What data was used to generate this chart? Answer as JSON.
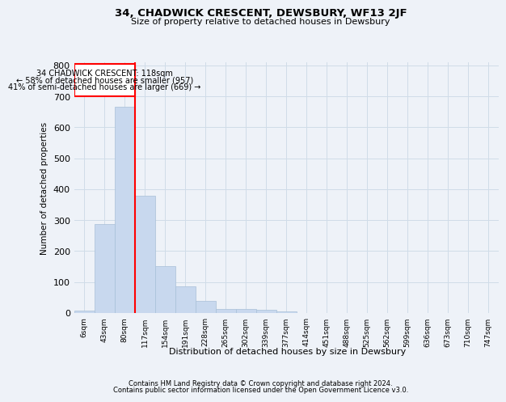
{
  "title1": "34, CHADWICK CRESCENT, DEWSBURY, WF13 2JF",
  "title2": "Size of property relative to detached houses in Dewsbury",
  "xlabel": "Distribution of detached houses by size in Dewsbury",
  "ylabel": "Number of detached properties",
  "bin_labels": [
    "6sqm",
    "43sqm",
    "80sqm",
    "117sqm",
    "154sqm",
    "191sqm",
    "228sqm",
    "265sqm",
    "302sqm",
    "339sqm",
    "377sqm",
    "414sqm",
    "451sqm",
    "488sqm",
    "525sqm",
    "562sqm",
    "599sqm",
    "636sqm",
    "673sqm",
    "710sqm",
    "747sqm"
  ],
  "bar_values": [
    8,
    288,
    665,
    378,
    152,
    87,
    38,
    14,
    14,
    10,
    5,
    0,
    0,
    0,
    0,
    0,
    0,
    0,
    0,
    0,
    0
  ],
  "bar_color": "#c8d8ee",
  "bar_edge_color": "#a8c0d8",
  "grid_color": "#d0dce8",
  "vline_x": 2.5,
  "annotation_box_text_line1": "34 CHADWICK CRESCENT: 118sqm",
  "annotation_box_text_line2": "← 58% of detached houses are smaller (957)",
  "annotation_box_text_line3": "41% of semi-detached houses are larger (669) →",
  "ylim": [
    0,
    810
  ],
  "yticks": [
    0,
    100,
    200,
    300,
    400,
    500,
    600,
    700,
    800
  ],
  "footer1": "Contains HM Land Registry data © Crown copyright and database right 2024.",
  "footer2": "Contains public sector information licensed under the Open Government Licence v3.0.",
  "background_color": "#eef2f8",
  "plot_bg_color": "#eef2f8"
}
